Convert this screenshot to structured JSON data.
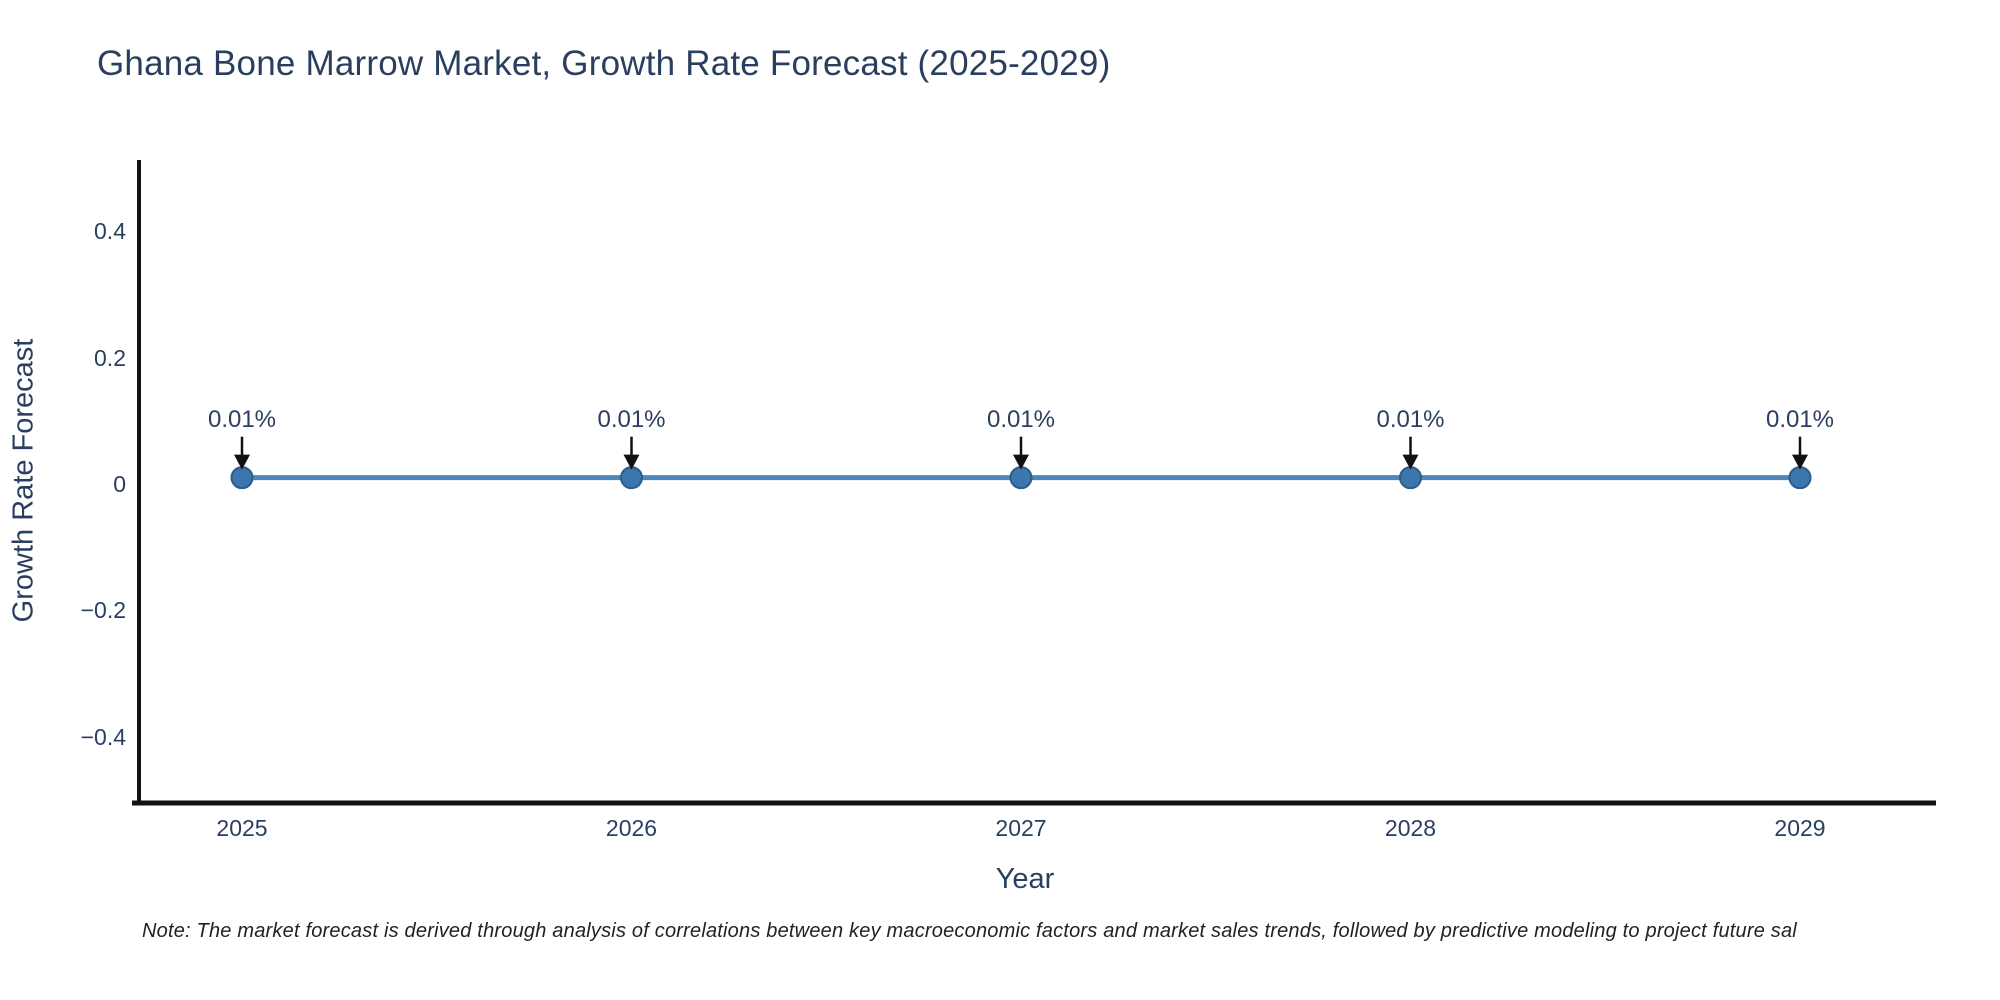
{
  "page": {
    "background": "#ffffff",
    "note": "Note: The market forecast is derived through analysis of correlations between key macroeconomic factors and market sales trends, followed by predictive modeling to project future sal"
  },
  "chart_data": {
    "type": "line",
    "title": "Ghana Bone Marrow Market, Growth Rate Forecast (2025-2029)",
    "xlabel": "Year",
    "ylabel": "Growth Rate Forecast",
    "categories": [
      "2025",
      "2026",
      "2027",
      "2028",
      "2029"
    ],
    "series": [
      {
        "name": "Growth Rate Forecast",
        "values": [
          0.01,
          0.01,
          0.01,
          0.01,
          0.01
        ]
      }
    ],
    "point_labels": [
      "0.01%",
      "0.01%",
      "0.01%",
      "0.01%",
      "0.01%"
    ],
    "annotation_style": "down-arrow",
    "y_ticks": [
      {
        "label": "0.4",
        "value": 0.4
      },
      {
        "label": "0.2",
        "value": 0.2
      },
      {
        "label": "0",
        "value": 0
      },
      {
        "label": "−0.2",
        "value": -0.2
      },
      {
        "label": "−0.4",
        "value": -0.4
      }
    ],
    "ylim": [
      -0.51,
      0.51
    ],
    "grid": false,
    "legend_position": "none",
    "colors": {
      "line": "#4e86b8",
      "marker_fill": "#3b76ae",
      "marker_edge": "#2a5d8c",
      "arrow": "#111111",
      "axis": "#111111",
      "text": "#2a3f5f"
    }
  }
}
